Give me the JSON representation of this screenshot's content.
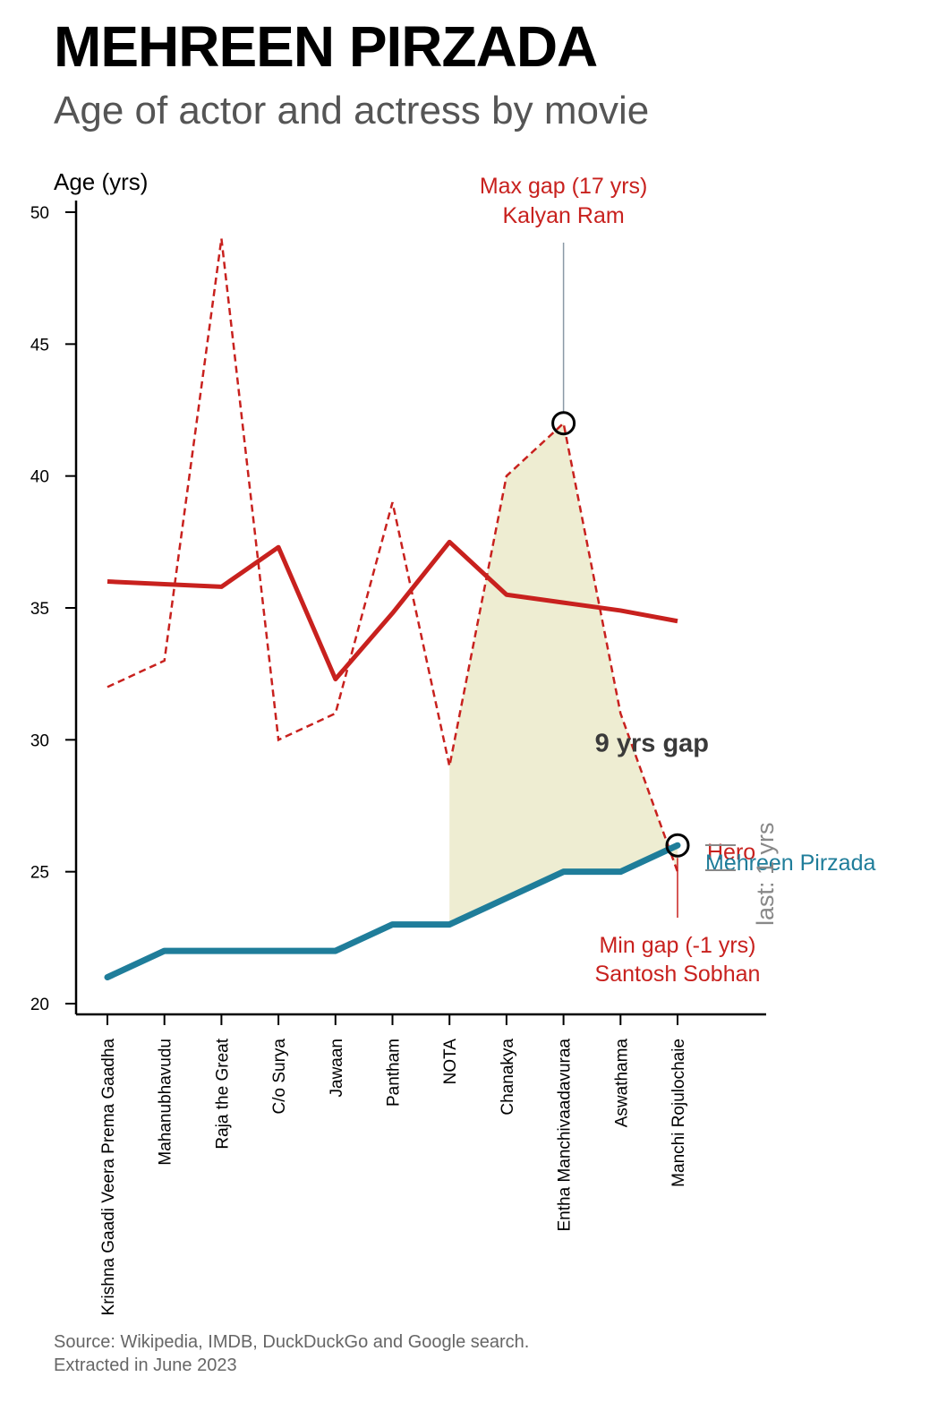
{
  "title": "MEHREEN PIRZADA",
  "subtitle": "Age of actor and actress by movie",
  "source": {
    "line1": "Source: Wikipedia, IMDB, DuckDuckGo and Google search.",
    "line2": "Extracted in June 2023"
  },
  "colors": {
    "actor": "#c8211e",
    "actress": "#1f7d9a",
    "gap_fill": "#eeedd2",
    "axis": "#000000",
    "leader": "#8a99a6",
    "gap_text": "#3a3a3a",
    "vertical_label": "#888888"
  },
  "chart_data": {
    "type": "line",
    "ylabel": "Age (yrs)",
    "ylim": [
      20,
      50
    ],
    "yticks": [
      20,
      25,
      30,
      35,
      40,
      45,
      50
    ],
    "categories": [
      "Krishna Gaadi Veera Prema Gaadha",
      "Mahanubhavudu",
      "Raja the Great",
      "C/o Surya",
      "Jawaan",
      "Pantham",
      "NOTA",
      "Chanakya",
      "Entha Manchivaadavuraa",
      "Aswathama",
      "Manchi Rojulochaie"
    ],
    "series": [
      {
        "name": "Hero",
        "role": "actor",
        "style": "dashed",
        "values": [
          32,
          33,
          49,
          30,
          31,
          39,
          29,
          40,
          42,
          31,
          25
        ]
      },
      {
        "name": "Mehreen Pirzada",
        "role": "actress",
        "style": "solid",
        "values": [
          21,
          22,
          22,
          22,
          22,
          23,
          23,
          24,
          25,
          25,
          26
        ]
      },
      {
        "role": "actor-trend",
        "style": "solid",
        "values": [
          36,
          35.9,
          35.8,
          37.3,
          32.3,
          34.8,
          37.5,
          35.5,
          35.2,
          34.9,
          34.5
        ]
      }
    ],
    "highlight_range": {
      "from": "NOTA",
      "to": "Manchi Rojulochaie",
      "label": "9 yrs gap",
      "label_at": {
        "category_index": 9.55,
        "y": 29.9
      }
    },
    "annotations": {
      "max_gap": {
        "line1": "Max gap (17 yrs)",
        "line2": "Kalyan Ram",
        "category_index": 8,
        "y": 42
      },
      "min_gap": {
        "line1": "Min gap (-1 yrs)",
        "line2": "Santosh Sobhan",
        "category_index": 10,
        "y": 26
      }
    },
    "vertical_label": "last: 1 yrs"
  }
}
